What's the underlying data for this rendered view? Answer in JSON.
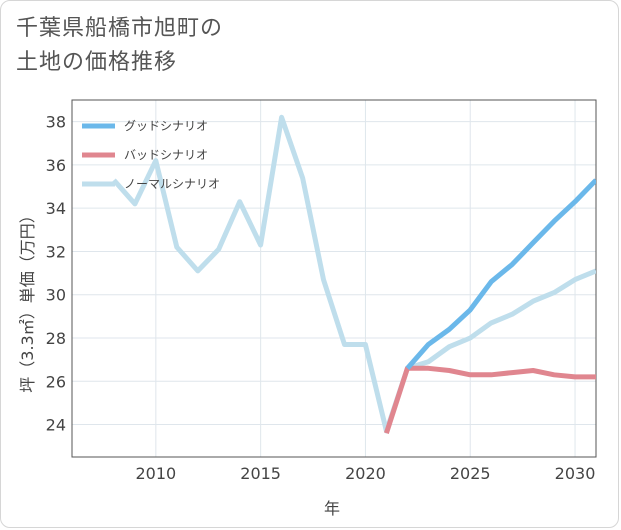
{
  "title": {
    "line1": "千葉県船橋市旭町の",
    "line2": "土地の価格推移"
  },
  "chart_data": {
    "type": "line",
    "xlabel": "年",
    "ylabel": "坪（3.3㎡）単価（万円）",
    "xlim": [
      2006,
      2031
    ],
    "ylim": [
      22.5,
      39.0
    ],
    "x_ticks": [
      2010,
      2015,
      2020,
      2025,
      2030
    ],
    "y_ticks": [
      24,
      26,
      28,
      30,
      32,
      34,
      36,
      38
    ],
    "grid": true,
    "legend_position": "top-left",
    "series": [
      {
        "name": "グッドシナリオ",
        "color": "#6bb8ea",
        "x": [
          2022,
          2023,
          2024,
          2025,
          2026,
          2027,
          2028,
          2029,
          2030,
          2031
        ],
        "y": [
          26.6,
          27.7,
          28.4,
          29.3,
          30.6,
          31.4,
          32.4,
          33.4,
          34.3,
          35.3
        ]
      },
      {
        "name": "バッドシナリオ",
        "color": "#e0868f",
        "x": [
          2021,
          2022,
          2023,
          2024,
          2025,
          2026,
          2027,
          2028,
          2029,
          2030,
          2031
        ],
        "y": [
          23.6,
          26.6,
          26.6,
          26.5,
          26.3,
          26.3,
          26.4,
          26.5,
          26.3,
          26.2,
          26.2
        ]
      },
      {
        "name": "ノーマルシナリオ",
        "color": "#bfdeec",
        "x": [
          2008,
          2009,
          2010,
          2011,
          2012,
          2013,
          2014,
          2015,
          2016,
          2017,
          2018,
          2019,
          2020,
          2021,
          2022,
          2023,
          2024,
          2025,
          2026,
          2027,
          2028,
          2029,
          2030,
          2031
        ],
        "y": [
          35.3,
          34.2,
          36.2,
          32.2,
          31.1,
          32.1,
          34.3,
          32.3,
          38.2,
          35.4,
          30.7,
          27.7,
          27.7,
          23.7,
          26.6,
          26.9,
          27.6,
          28.0,
          28.7,
          29.1,
          29.7,
          30.1,
          30.7,
          31.1
        ]
      }
    ]
  }
}
